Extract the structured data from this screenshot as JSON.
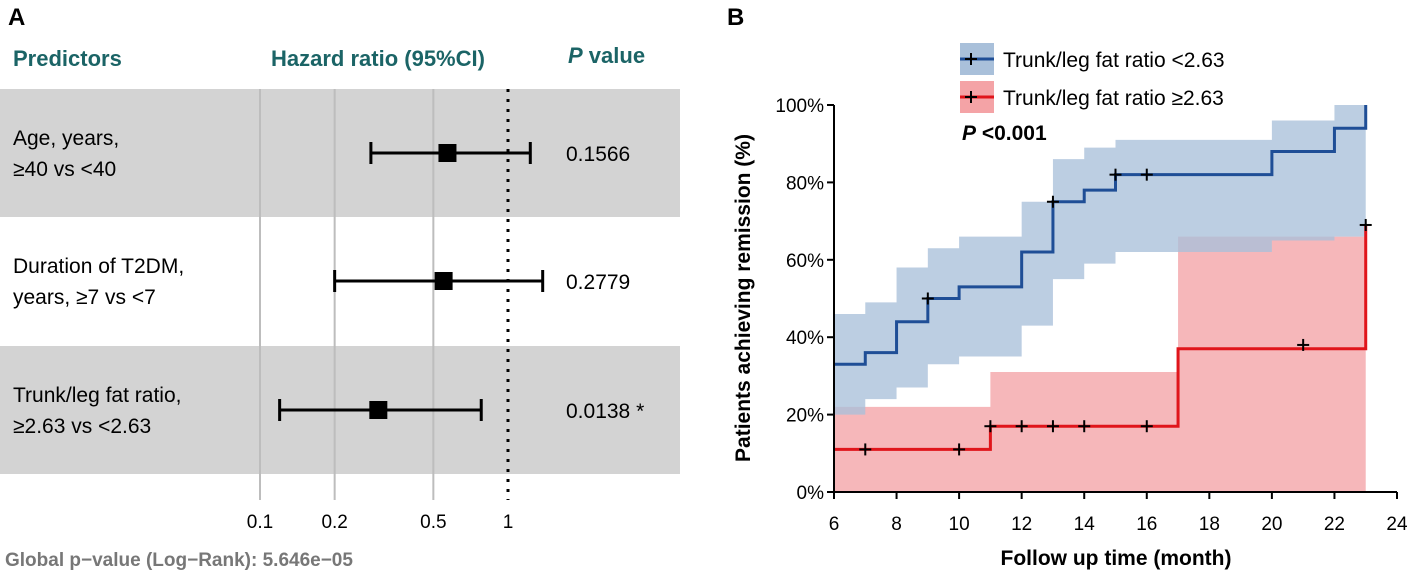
{
  "colors": {
    "header_teal": "#1b6466",
    "row_shade": "#d3d3d3",
    "blue_line": "#1f4e96",
    "blue_band": "#a9c0da",
    "red_line": "#e0151b",
    "red_band": "#f4a3a6",
    "footer_gray": "#777777"
  },
  "panel_a": {
    "label": "A",
    "headers": {
      "predictors": "Predictors",
      "hr": "Hazard ratio (95%CI)",
      "p_italic": "P",
      "p_rest": " value"
    },
    "footer": "Global p−value (Log−Rank): 5.646e−05"
  },
  "panel_b": {
    "label": "B",
    "p_annotation": {
      "italic": "P",
      "rest": " <0.001"
    }
  },
  "chart_data": [
    {
      "type": "forest",
      "title": "Hazard ratio (95%CI)",
      "axis": {
        "scale": "log",
        "ticks": [
          "0.1",
          "0.2",
          "0.5",
          "1"
        ],
        "tick_values": [
          0.1,
          0.2,
          0.5,
          1
        ],
        "reference": 1,
        "xlim": [
          0.1,
          1.4
        ]
      },
      "rows": [
        {
          "label_lines": [
            "Age, years,",
            "≥40 vs <40"
          ],
          "hr": 0.57,
          "lower": 0.28,
          "upper": 1.23,
          "p": "0.1566",
          "shaded": true
        },
        {
          "label_lines": [
            "Duration of T2DM,",
            "years, ≥7 vs <7"
          ],
          "hr": 0.55,
          "lower": 0.2,
          "upper": 1.38,
          "p": "0.2779",
          "shaded": false
        },
        {
          "label_lines": [
            "Trunk/leg fat ratio,",
            "≥2.63 vs <2.63"
          ],
          "hr": 0.3,
          "lower": 0.12,
          "upper": 0.78,
          "p": "0.0138 *",
          "shaded": true
        }
      ]
    },
    {
      "type": "line",
      "subtype": "step",
      "xlabel": "Follow up time (month)",
      "ylabel": "Patients achieving remission (%)",
      "xlim": [
        6,
        24
      ],
      "ylim": [
        0,
        100
      ],
      "xticks": [
        6,
        8,
        10,
        12,
        14,
        16,
        18,
        20,
        22,
        24
      ],
      "yticks": [
        0,
        20,
        40,
        60,
        80,
        100
      ],
      "ytick_labels": [
        "0%",
        "20%",
        "40%",
        "60%",
        "80%",
        "100%"
      ],
      "legend_position": "top",
      "series": [
        {
          "name": "Trunk/leg fat ratio <2.63",
          "color": "#1f4e96",
          "band_color": "#a9c0da",
          "x": [
            6,
            6.6,
            7,
            8,
            9,
            10,
            11,
            12,
            13,
            14,
            15,
            20,
            22,
            23
          ],
          "y": [
            33,
            33,
            36,
            44,
            50,
            53,
            53,
            62,
            75,
            78,
            82,
            88,
            94,
            100
          ],
          "upper": [
            46,
            46,
            49,
            58,
            63,
            66,
            66,
            75,
            86,
            89,
            91,
            96,
            100,
            100
          ],
          "lower": [
            20,
            20,
            24,
            27,
            33,
            35,
            35,
            43,
            55,
            59,
            62,
            65,
            66,
            66
          ],
          "censor_x": [
            9,
            13,
            15,
            16
          ],
          "censor_y": [
            50,
            75,
            82,
            82
          ]
        },
        {
          "name": "Trunk/leg fat ratio ≥2.63",
          "color": "#e0151b",
          "band_color": "#f4a3a6",
          "x": [
            6,
            11,
            17,
            23
          ],
          "y": [
            11,
            17,
            37,
            69
          ],
          "upper": [
            22,
            31,
            66,
            69
          ],
          "lower": [
            0,
            0,
            0,
            0
          ],
          "censor_x": [
            7,
            10,
            11,
            12,
            13,
            14,
            16,
            21,
            23
          ],
          "censor_y": [
            11,
            11,
            17,
            17,
            17,
            17,
            17,
            38,
            69
          ]
        }
      ]
    }
  ]
}
